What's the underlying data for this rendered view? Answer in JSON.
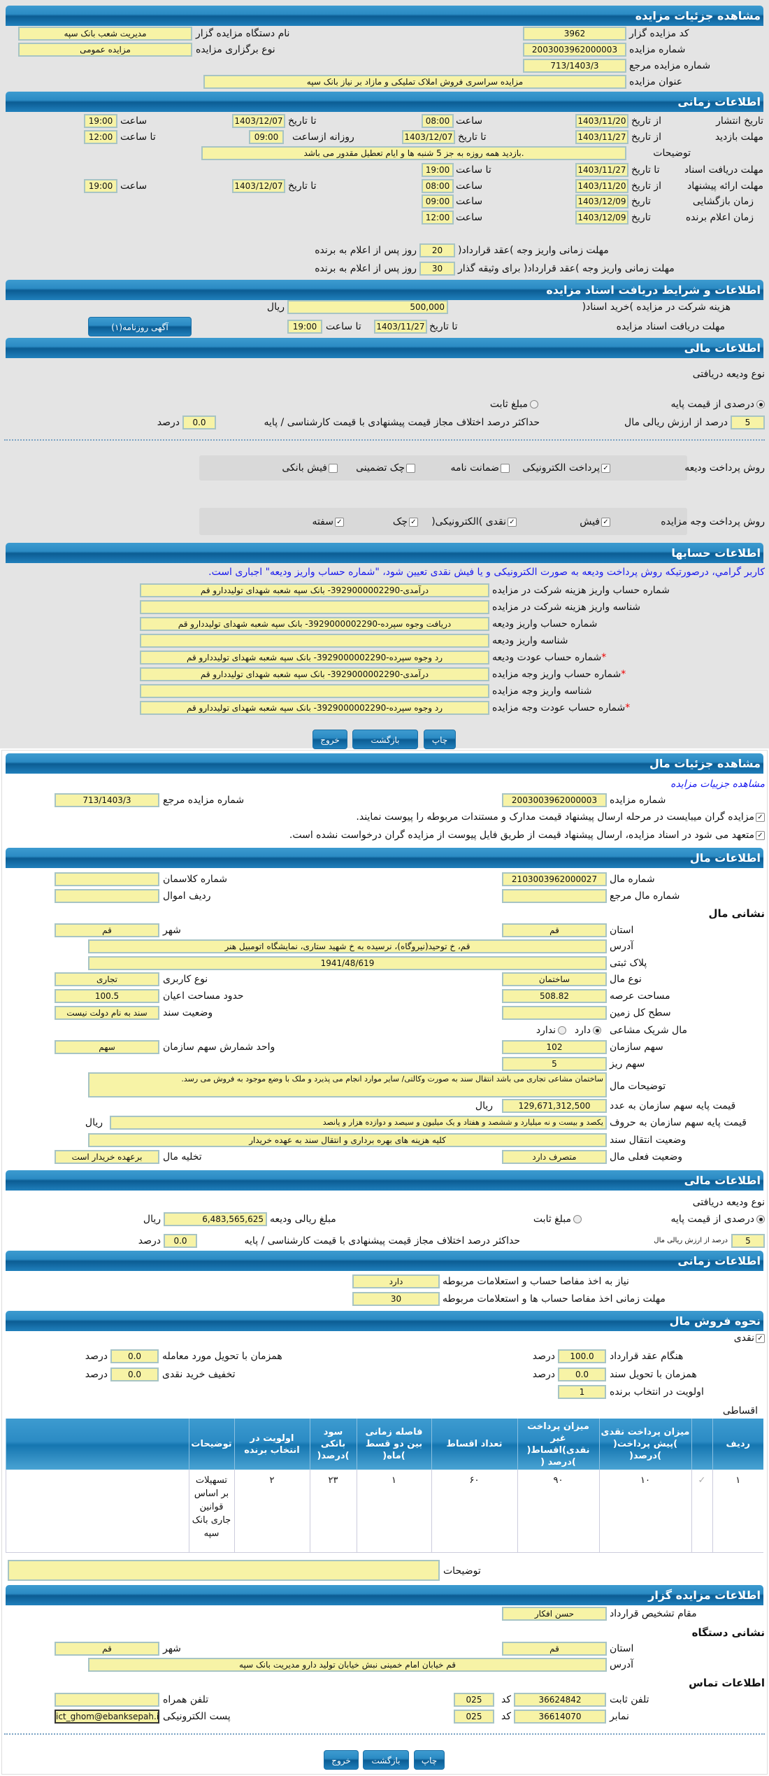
{
  "auction": {
    "header": "مشاهده جزئیات مزایده",
    "code_label": "کد مزایده گزار",
    "code": "3962",
    "org_label": "نام دستگاه مزایده گزار",
    "org": "مدیریت شعب بانک سپه",
    "number_label": "شماره مزایده",
    "number": "2003003962000003",
    "type_label": "نوع برگزاری مزایده",
    "type": "مزایده عمومی",
    "ref_label": "شماره مزایده مرجع",
    "ref": "713/1403/3",
    "title_label": "عنوان مزایده",
    "title": "مزایده سراسری فروش املاک تملیکی و مازاد بر نیاز بانک سپه"
  },
  "timing": {
    "header": "اطلاعات زمانی",
    "from_date": "از تاریخ",
    "to_date": "تا تاریخ",
    "date": "تاریخ",
    "hour": "ساعت",
    "to_hour": "تا ساعت",
    "daily_from": "روزانه ازساعت",
    "publish_label": "تاریخ انتشار",
    "publish_from": "1403/11/20",
    "publish_from_time": "08:00",
    "publish_to": "1403/12/07",
    "publish_to_time": "19:00",
    "visit_label": "مهلت بازدید",
    "visit_from": "1403/11/27",
    "visit_to": "1403/12/07",
    "visit_from_time": "09:00",
    "visit_to_time": "12:00",
    "desc_label": "توضیحات",
    "desc": ".بازدید همه روزه به جز 5 شنبه ها و ایام تعطیل مقدور می باشد",
    "docs_label": "مهلت دریافت اسناد",
    "docs_to": "1403/11/27",
    "docs_to_time": "19:00",
    "offer_label": "مهلت ارائه پیشنهاد",
    "offer_from": "1403/11/20",
    "offer_from_time": "08:00",
    "offer_to": "1403/12/07",
    "offer_to_time": "19:00",
    "opening_label": "زمان بازگشایی",
    "opening_date": "1403/12/09",
    "opening_time": "09:00",
    "winner_label": "زمان اعلام برنده",
    "winner_date": "1403/12/09",
    "winner_time": "12:00",
    "pay_contract_label": "مهلت زمانی واریز وجه )عقد قرارداد(",
    "pay_contract_days": "20",
    "pay_collateral_label": "مهلت زمانی واریز وجه )عقد قرارداد( برای وثیقه گذار",
    "pay_collateral_days": "30",
    "days_after": "روز پس از اعلام به برنده"
  },
  "documents": {
    "header": "اطلاعات و شرایط دریافت اسناد مزایده",
    "fee_label": "هزینه شرکت در مزایده )خرید اسناد(",
    "fee": "500,000",
    "rial": "ریال",
    "deadline_label": "مهلت دریافت اسناد مزایده",
    "to_date": "تا تاریخ",
    "date": "1403/11/27",
    "to_hour": "تا ساعت",
    "time": "19:00",
    "ad_button": "آگهی روزنامه(۱)"
  },
  "finance": {
    "header": "اطلاعات مالی",
    "deposit_type_label": "نوع ودیعه دریافتی",
    "opt_percent": "درصدی از قیمت پایه",
    "opt_fixed": "مبلغ ثابت",
    "selected": "percent",
    "percent": "5",
    "percent_label": "درصد از ارزش ریالی مال",
    "max_diff_label": "حداکثر درصد اختلاف مجاز قیمت پیشنهادی با قیمت کارشناسی / پایه",
    "max_diff": "0.0",
    "percent_unit": "درصد",
    "deposit_pay_label": "روش پرداخت ودیعه",
    "deposit_methods": [
      {
        "label": "پرداخت الکترونیکی",
        "checked": true
      },
      {
        "label": "ضمانت نامه",
        "checked": false
      },
      {
        "label": "چک تضمینی",
        "checked": false
      },
      {
        "label": "فیش بانکی",
        "checked": false
      }
    ],
    "amount_pay_label": "روش پرداخت وجه مزایده",
    "amount_methods": [
      {
        "label": "فیش",
        "checked": true
      },
      {
        "label": "نقدی )الکترونیکی(",
        "checked": true
      },
      {
        "label": "چک",
        "checked": true
      },
      {
        "label": "سفته",
        "checked": true
      }
    ]
  },
  "accounts": {
    "header": "اطلاعات حسابها",
    "notice": "کاربر گرامي، درصورتیکه روش پرداخت ودیعه به صورت الکترونیکی و یا فیش نقدی تعیین شود، \"شماره حساب واریز ودیعه\" اجباری است.",
    "rows": [
      {
        "label": "شماره حساب واریز هزینه شرکت در مزایده",
        "value": "درآمدی-3929000002290- بانک سپه شعبه شهدای تولیددارو قم",
        "required": false
      },
      {
        "label": "شناسه واریز هزینه شرکت در مزایده",
        "value": "",
        "required": false
      },
      {
        "label": "شماره حساب واریز ودیعه",
        "value": "دریافت وجوه سپرده-3929000002290- بانک سپه شعبه شهدای تولیددارو قم",
        "required": false
      },
      {
        "label": "شناسه واریز ودیعه",
        "value": "",
        "required": false
      },
      {
        "label": "شماره حساب عودت ودیعه",
        "value": "رد وجوه سپرده-3929000002290- بانک سپه شعبه شهدای تولیددارو قم",
        "required": true
      },
      {
        "label": "شماره حساب واریز وجه مزایده",
        "value": "درآمدی-3929000002290- بانک سپه شعبه شهدای تولیددارو قم",
        "required": true
      },
      {
        "label": "شناسه واریز وجه مزایده",
        "value": "",
        "required": false
      },
      {
        "label": "شماره حساب عودت وجه مزایده",
        "value": "رد وجوه سپرده-3929000002290- بانک سپه شعبه شهدای تولیددارو قم",
        "required": true
      }
    ],
    "star": "*"
  },
  "buttons": {
    "print": "چاپ",
    "back": "بازگشت",
    "exit": "خروج"
  },
  "item_details": {
    "header": "مشاهده جزئیات مال",
    "link": "مشاهده جزییات مزایده",
    "number_label": "شماره مزایده",
    "number": "2003003962000003",
    "ref_label": "شماره مزایده مرجع",
    "ref": "713/1403/3",
    "check1": "مزایده گران میبایست در مرحله ارسال پیشنهاد قیمت مدارک و مستندات مربوطه را پیوست نمایند.",
    "check2": "متعهد می شود در اسناد مزایده، ارسال پیشنهاد قیمت از طریق فایل پیوست از مزایده گران درخواست نشده است."
  },
  "item": {
    "header": "اطلاعات مال",
    "item_no_label": "شماره مال",
    "item_no": "2103003962000027",
    "class_label": "شماره کلاسمان",
    "class": "",
    "item_ref_label": "شماره مال مرجع",
    "item_ref": "",
    "row_label": "ردیف اموال",
    "row": "",
    "address_title": "نشانی مال",
    "province_label": "استان",
    "province": "قم",
    "city_label": "شهر",
    "city": "قم",
    "address_label": "آدرس",
    "address": "قم، خ توحید(نیروگاه)، نرسیده به خ شهید ستاری، نمایشگاه اتومبیل هنر",
    "plate_label": "پلاک ثبتی",
    "plate": "1941/48/619",
    "kind_label": "نوع مال",
    "kind": "ساختمان",
    "usage_label": "نوع کاربری",
    "usage": "تجاری",
    "area_label": "مساحت عرصه",
    "area": "508.82",
    "building_label": "حدود مساحت اعیان",
    "building": "100.5",
    "land_label": "سطح کل زمین",
    "land": "",
    "deed_label": "وضعیت سند",
    "deed": "سند به نام دولت نیست",
    "shared_label": "مال شریک مشاعی",
    "shared_yes": "دارد",
    "shared_no": "ندارد",
    "shared": "yes",
    "share_label": "سهم سازمان",
    "share": "102",
    "unit_label": "واحد شمارش سهم سازمان",
    "unit": "سهم",
    "sub_label": "سهم ریز",
    "sub": "5",
    "desc_label": "توضیحات مال",
    "desc": "ساختمان مشاعی تجاری می باشد انتقال سند به صورت وکالتی/ سایر موارد انجام می پذیرد و ملک با وضع موجود به فروش می رسد.",
    "price_num_label": "قیمت پایه سهم سازمان به عدد",
    "price_num": "129,671,312,500",
    "price_txt_label": "قیمت پایه سهم سازمان به حروف",
    "price_txt": "یکصد و بیست و نه میلیارد و ششصد و هفتاد و یک میلیون و سیصد و دوازده هزار و پانصد",
    "rial": "ریال",
    "transfer_label": "وضعیت انتقال سند",
    "transfer": "کلیه هزینه های بهره برداری و انتقال سند به عهده خریدار",
    "status_label": "وضعیت فعلی مال",
    "status": "متصرف دارد",
    "evac_label": "تخلیه مال",
    "evac": "برعهده خریدار است"
  },
  "finance2": {
    "header": "اطلاعات مالی",
    "deposit_type_label": "نوع ودیعه دریافتی",
    "opt_percent": "درصدی از قیمت پایه",
    "opt_fixed": "مبلغ ثابت",
    "selected": "percent",
    "amount_label": "مبلغ ریالی ودیعه",
    "amount": "6,483,565,625",
    "rial": "ریال",
    "percent": "5",
    "percent_label": "درصد از ارزش ریالی مال",
    "max_diff_label": "حداکثر درصد اختلاف مجاز قیمت پیشنهادی با قیمت کارشناسی / پایه",
    "max_diff": "0.0",
    "percent_unit": "درصد"
  },
  "timing2": {
    "header": "اطلاعات زمانی",
    "need_label": "نیاز به اخذ مفاصا حساب و استعلامات مربوطه",
    "need": "دارد",
    "deadline_label": "مهلت زمانی اخذ مفاصا حساب ها و استعلامات مربوطه",
    "deadline": "30"
  },
  "sale": {
    "header": "نحوه فروش مال",
    "cash_label": "نقدی",
    "cash_checked": true,
    "percent_unit": "درصد",
    "contract_label": "هنگام عقد قرارداد",
    "contract": "100.0",
    "delivery_label": "همزمان با تحویل مورد معامله",
    "delivery": "0.0",
    "deed_label": "همزمان با تحویل سند",
    "deed": "0.0",
    "discount_label": "تخفیف خرید نقدی",
    "discount": "0.0",
    "priority_label": "اولویت در انتخاب برنده",
    "priority": "1",
    "installment_label": "اقساطی",
    "table": {
      "headers": [
        "ردیف",
        "",
        "میزان پرداخت نقدی )پیش پرداخت( )درصد(",
        "میزان پرداخت غیر نقدی)اقساط( )درصد (",
        "تعداد اقساط",
        "فاصله زمانی بین دو قسط )ماه(",
        "سود بانکی )درصد(",
        "اولویت در انتخاب برنده",
        "توضیحات",
        ""
      ],
      "rows": [
        [
          "۱",
          "✓",
          "۱۰",
          "۹۰",
          "۶۰",
          "۱",
          "۲۳",
          "۲",
          "تسهیلات بر اساس قوانین جاری بانک سپه",
          ""
        ]
      ]
    },
    "notes_label": "توضیحات",
    "notes": ""
  },
  "auctioneer": {
    "header": "اطلاعات مزایده گزار",
    "authority_label": "مقام تشخیص قرارداد",
    "authority": "حسن افکار",
    "org_address_title": "نشانی دستگاه",
    "province_label": "استان",
    "province": "قم",
    "city_label": "شهر",
    "city": "قم",
    "address_label": "آدرس",
    "address": "قم خیابان امام خمینی نبش خیابان تولید دارو مدیریت بانک سپه",
    "contact_title": "اطلاعات تماس",
    "phone_label": "تلفن ثابت",
    "phone": "36624842",
    "code_label": "کد",
    "phone_code": "025",
    "mobile_label": "تلفن همراه",
    "mobile": "",
    "fax_label": "نمابر",
    "fax": "36614070",
    "fax_code": "025",
    "email_label": "پست الکترونیکی",
    "email": "ict_ghom@ebanksepah.ir"
  },
  "colors": {
    "header_blue": "#2b8bc4",
    "input_yellow": "#f7f3a6",
    "notice_blue": "#1a1aee",
    "required_red": "#ee0000"
  }
}
